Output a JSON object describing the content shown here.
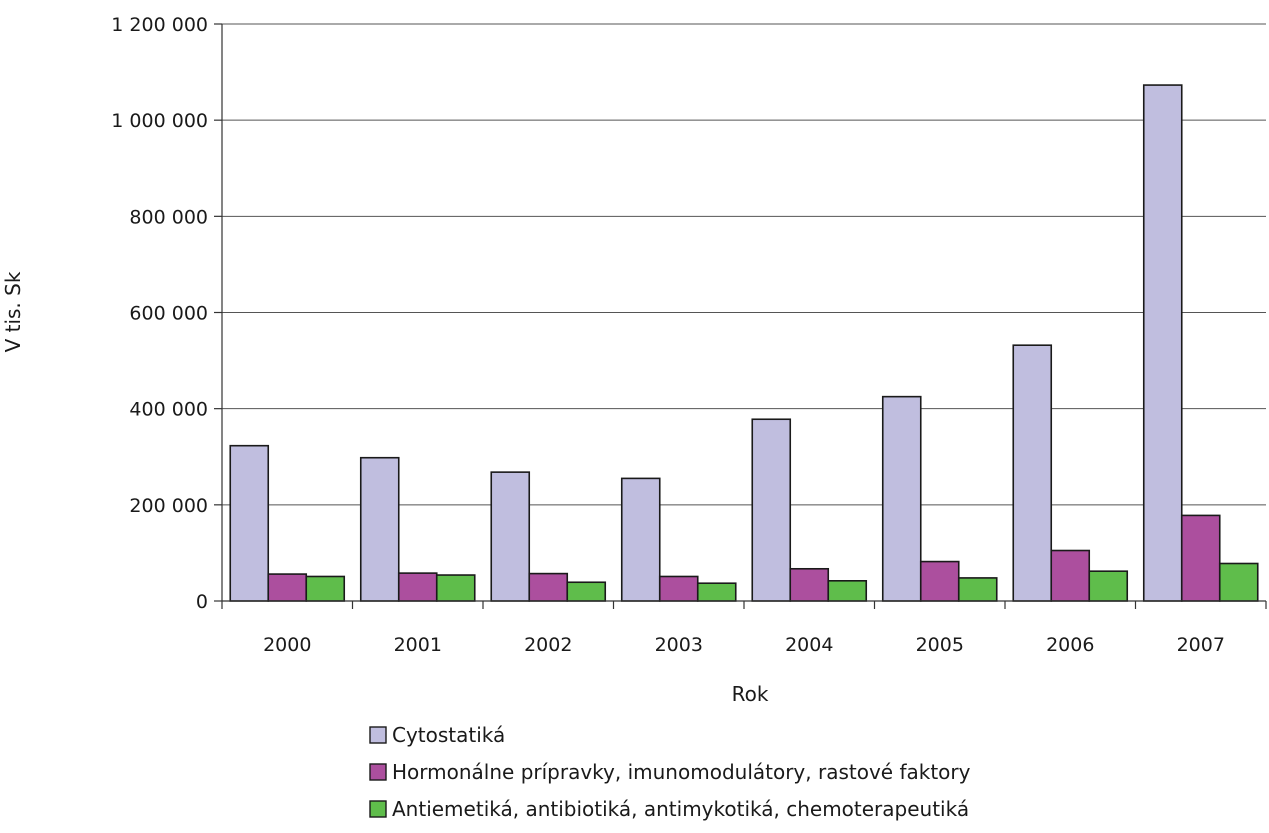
{
  "chart_data": {
    "type": "bar",
    "xlabel": "Rok",
    "ylabel": "V tis. Sk",
    "ylim": [
      0,
      1200000
    ],
    "yticks": [
      0,
      200000,
      400000,
      600000,
      800000,
      1000000,
      1200000
    ],
    "ytick_labels": [
      "0",
      "200 000",
      "400 000",
      "600 000",
      "800 000",
      "1 000 000",
      "1 200 000"
    ],
    "grid": true,
    "legend_position": "bottom",
    "categories": [
      "2000",
      "2001",
      "2002",
      "2003",
      "2004",
      "2005",
      "2006",
      "2007"
    ],
    "series": [
      {
        "name": "Cytostatiká",
        "color": "#c0bedf",
        "values": [
          323000,
          298000,
          268000,
          255000,
          378000,
          425000,
          532000,
          1073000
        ]
      },
      {
        "name": "Hormonálne prípravky, imunomodulátory, rastové faktory",
        "color": "#ac4f9e",
        "values": [
          56000,
          58000,
          57000,
          51000,
          67000,
          82000,
          105000,
          178000
        ]
      },
      {
        "name": "Antiemetiká, antibiotiká, antimykotiká, chemoterapeutiká",
        "color": "#5fbd4b",
        "values": [
          51000,
          54000,
          39000,
          37000,
          42000,
          48000,
          62000,
          78000
        ]
      }
    ]
  }
}
